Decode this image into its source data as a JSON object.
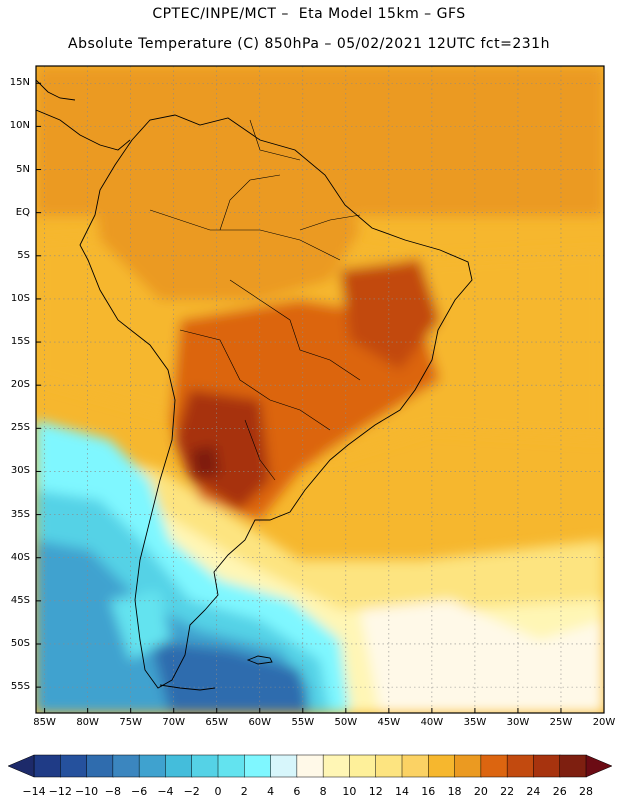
{
  "header": {
    "line1": "CPTEC/INPE/MCT –  Eta Model 15km – GFS",
    "line2": "Absolute Temperature (C) 850hPa – 05/02/2021 12UTC fct=231h"
  },
  "map": {
    "lat_labels": [
      "15N",
      "10N",
      "5N",
      "EQ",
      "5S",
      "10S",
      "15S",
      "20S",
      "25S",
      "30S",
      "35S",
      "40S",
      "45S",
      "50S",
      "55S"
    ],
    "lon_labels": [
      "85W",
      "80W",
      "75W",
      "70W",
      "65W",
      "60W",
      "55W",
      "50W",
      "45W",
      "40W",
      "35W",
      "30W",
      "25W",
      "20W"
    ],
    "lat_range": [
      17,
      -58
    ],
    "lon_range": [
      -86,
      -20
    ],
    "colors": {
      "land_border": "#000000",
      "grid": "#8a8a8a"
    }
  },
  "colorbar": {
    "labels": [
      "-14",
      "-12",
      "-10",
      "-8",
      "-6",
      "-4",
      "-2",
      "0",
      "2",
      "4",
      "6",
      "8",
      "10",
      "12",
      "14",
      "16",
      "18",
      "20",
      "22",
      "24",
      "26",
      "28"
    ],
    "colors": [
      "#1f3b86",
      "#25519d",
      "#2f6cae",
      "#3b86bf",
      "#3fa2cf",
      "#44bddb",
      "#55d2e6",
      "#63e3ef",
      "#7ff7ff",
      "#d7f6fb",
      "#fff9e8",
      "#fff6b5",
      "#fef09a",
      "#fde480",
      "#fbd264",
      "#f6b72e",
      "#eb9a21",
      "#dc6510",
      "#c24a0f",
      "#a7330e",
      "#7e1f10"
    ],
    "left_arrow": "#1d2a6a",
    "right_arrow": "#6b0b14"
  }
}
